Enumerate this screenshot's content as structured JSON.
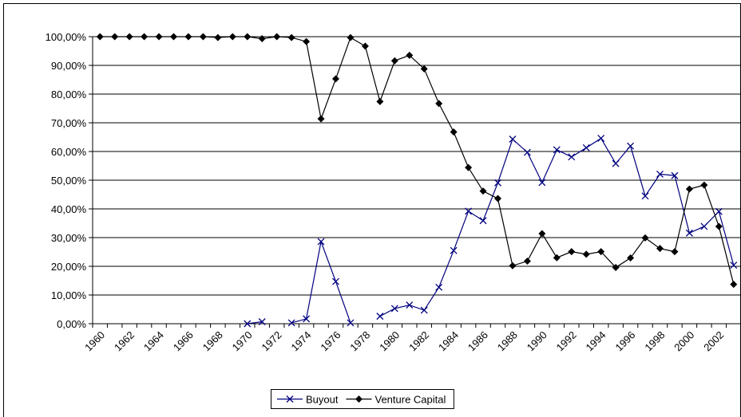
{
  "chart_data": {
    "type": "line",
    "categories": [
      "1960",
      null,
      "1962",
      null,
      "1964",
      null,
      "1966",
      null,
      "1968",
      null,
      "1970",
      null,
      "1972",
      null,
      "1974",
      null,
      "1976",
      null,
      "1978",
      null,
      "1980",
      null,
      "1982",
      null,
      "1984",
      null,
      "1986",
      null,
      "1988",
      null,
      "1990",
      null,
      "1992",
      null,
      "1994",
      null,
      "1996",
      null,
      "1998",
      null,
      "2000",
      null,
      "2002",
      null
    ],
    "series": [
      {
        "name": "Buyout",
        "color": "#000080",
        "marker": "x",
        "values": [
          null,
          null,
          null,
          null,
          null,
          null,
          null,
          null,
          null,
          null,
          0,
          0.7,
          null,
          0.3,
          1.7,
          28.6,
          14.7,
          0.3,
          null,
          2.6,
          5.3,
          6.5,
          4.7,
          12.7,
          25.5,
          39.2,
          35.9,
          49.1,
          64.3,
          59.7,
          49.2,
          60.6,
          58.1,
          61.3,
          64.6,
          55.8,
          61.9,
          44.5,
          52.1,
          51.6,
          31.6,
          33.9,
          39.1,
          20.4
        ]
      },
      {
        "name": "Venture Capital",
        "color": "#000000",
        "marker": "diamond",
        "values": [
          100,
          100,
          100,
          100,
          100,
          100,
          100,
          100,
          99.7,
          100,
          100,
          99.3,
          100,
          99.7,
          98.3,
          71.4,
          85.3,
          99.7,
          96.7,
          77.4,
          91.6,
          93.5,
          88.8,
          76.7,
          66.8,
          54.4,
          46.2,
          43.6,
          20.2,
          21.8,
          31.4,
          23.0,
          25.1,
          24.2,
          25.1,
          19.6,
          22.9,
          29.9,
          26.2,
          25.1,
          46.9,
          48.3,
          33.9,
          13.7
        ]
      }
    ],
    "ylim": [
      0,
      100
    ],
    "yticks": [
      {
        "value": 0,
        "label": "0,00%"
      },
      {
        "value": 10,
        "label": "10,00%"
      },
      {
        "value": 20,
        "label": "20,00%"
      },
      {
        "value": 30,
        "label": "30,00%"
      },
      {
        "value": 40,
        "label": "40,00%"
      },
      {
        "value": 50,
        "label": "50,00%"
      },
      {
        "value": 60,
        "label": "60,00%"
      },
      {
        "value": 70,
        "label": "70,00%"
      },
      {
        "value": 80,
        "label": "80,00%"
      },
      {
        "value": 90,
        "label": "90,00%"
      },
      {
        "value": 100,
        "label": "100,00%"
      }
    ],
    "grid": true,
    "legend": "bottom"
  }
}
